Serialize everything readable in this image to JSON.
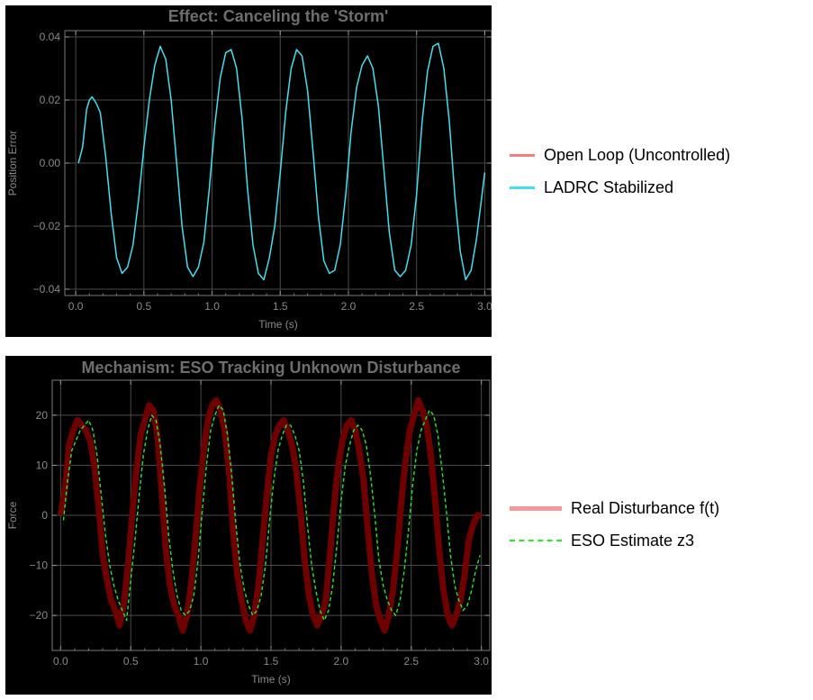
{
  "chart_data": [
    {
      "type": "line",
      "title": "Effect: Canceling the 'Storm'",
      "xlabel": "Time (s)",
      "ylabel": "Position Error",
      "xlim": [
        -0.08,
        3.05
      ],
      "ylim": [
        -0.042,
        0.042
      ],
      "xticks": [
        0.0,
        0.5,
        1.0,
        1.5,
        2.0,
        2.5,
        3.0
      ],
      "xtick_labels": [
        "0.0",
        "0.5",
        "1.0",
        "1.5",
        "2.0",
        "2.5",
        "3.0"
      ],
      "yticks": [
        -0.04,
        -0.02,
        0.0,
        0.02,
        0.04
      ],
      "ytick_labels": [
        "−0.04",
        "−0.02",
        "0.00",
        "0.02",
        "0.04"
      ],
      "grid": true,
      "legend_position": "right",
      "series": [
        {
          "name": "Open Loop (Uncontrolled)",
          "color": "#f08080",
          "x": [],
          "y": []
        },
        {
          "name": "LADRC Stabilized",
          "color": "#40e0f0",
          "x": [
            0.02,
            0.05,
            0.08,
            0.1,
            0.12,
            0.15,
            0.18,
            0.22,
            0.26,
            0.3,
            0.34,
            0.38,
            0.42,
            0.46,
            0.5,
            0.54,
            0.58,
            0.62,
            0.66,
            0.7,
            0.74,
            0.78,
            0.82,
            0.86,
            0.9,
            0.94,
            0.98,
            1.02,
            1.06,
            1.1,
            1.14,
            1.18,
            1.22,
            1.26,
            1.3,
            1.34,
            1.38,
            1.42,
            1.46,
            1.5,
            1.54,
            1.58,
            1.62,
            1.66,
            1.7,
            1.74,
            1.78,
            1.82,
            1.86,
            1.9,
            1.94,
            1.98,
            2.02,
            2.06,
            2.1,
            2.14,
            2.18,
            2.22,
            2.26,
            2.3,
            2.34,
            2.38,
            2.42,
            2.46,
            2.5,
            2.54,
            2.58,
            2.62,
            2.66,
            2.7,
            2.74,
            2.78,
            2.82,
            2.86,
            2.9,
            2.94,
            2.98,
            3.0
          ],
          "y": [
            0.0,
            0.005,
            0.017,
            0.02,
            0.021,
            0.019,
            0.016,
            0.002,
            -0.016,
            -0.03,
            -0.035,
            -0.033,
            -0.026,
            -0.012,
            0.005,
            0.02,
            0.031,
            0.037,
            0.033,
            0.02,
            0.0,
            -0.02,
            -0.033,
            -0.036,
            -0.033,
            -0.025,
            -0.008,
            0.012,
            0.027,
            0.035,
            0.036,
            0.03,
            0.014,
            -0.008,
            -0.026,
            -0.035,
            -0.037,
            -0.03,
            -0.02,
            -0.003,
            0.016,
            0.03,
            0.036,
            0.034,
            0.023,
            0.004,
            -0.017,
            -0.031,
            -0.035,
            -0.034,
            -0.026,
            -0.01,
            0.01,
            0.024,
            0.031,
            0.034,
            0.03,
            0.018,
            -0.002,
            -0.022,
            -0.034,
            -0.036,
            -0.034,
            -0.026,
            -0.01,
            0.013,
            0.029,
            0.037,
            0.038,
            0.03,
            0.013,
            -0.01,
            -0.028,
            -0.037,
            -0.034,
            -0.024,
            -0.01,
            -0.003
          ]
        }
      ]
    },
    {
      "type": "line",
      "title": "Mechanism: ESO Tracking Unknown Disturbance",
      "xlabel": "Time (s)",
      "ylabel": "Force",
      "xlim": [
        -0.06,
        3.06
      ],
      "ylim": [
        -27,
        27
      ],
      "xticks": [
        0.0,
        0.5,
        1.0,
        1.5,
        2.0,
        2.5,
        3.0
      ],
      "xtick_labels": [
        "0.0",
        "0.5",
        "1.0",
        "1.5",
        "2.0",
        "2.5",
        "3.0"
      ],
      "yticks": [
        -20,
        -10,
        0,
        10,
        20
      ],
      "ytick_labels": [
        "−20",
        "−10",
        "0",
        "10",
        "20"
      ],
      "grid": true,
      "legend_position": "right",
      "series": [
        {
          "name": "Real Disturbance f(t)",
          "color": "#f89898",
          "plot_color": "#6e0000",
          "x": [
            0.0,
            0.03,
            0.06,
            0.09,
            0.12,
            0.15,
            0.18,
            0.21,
            0.24,
            0.27,
            0.3,
            0.33,
            0.36,
            0.39,
            0.42,
            0.45,
            0.48,
            0.51,
            0.54,
            0.57,
            0.6,
            0.63,
            0.66,
            0.69,
            0.72,
            0.75,
            0.78,
            0.81,
            0.84,
            0.87,
            0.9,
            0.93,
            0.96,
            0.99,
            1.02,
            1.05,
            1.08,
            1.11,
            1.14,
            1.17,
            1.2,
            1.23,
            1.26,
            1.29,
            1.32,
            1.35,
            1.38,
            1.41,
            1.44,
            1.47,
            1.5,
            1.53,
            1.56,
            1.59,
            1.62,
            1.65,
            1.68,
            1.71,
            1.74,
            1.77,
            1.8,
            1.83,
            1.86,
            1.89,
            1.92,
            1.95,
            1.98,
            2.01,
            2.04,
            2.07,
            2.1,
            2.13,
            2.16,
            2.19,
            2.22,
            2.25,
            2.28,
            2.31,
            2.34,
            2.37,
            2.4,
            2.43,
            2.46,
            2.49,
            2.52,
            2.55,
            2.58,
            2.61,
            2.64,
            2.67,
            2.7,
            2.73,
            2.76,
            2.79,
            2.82,
            2.85,
            2.88,
            2.91,
            2.94,
            2.97,
            3.0
          ],
          "y": [
            0,
            5,
            14,
            17,
            19,
            18,
            17,
            15,
            10,
            2,
            -8,
            -13,
            -17,
            -19,
            -22,
            -18,
            -10,
            0,
            9,
            16,
            19,
            22,
            21,
            16,
            5,
            -7,
            -14,
            -18,
            -20,
            -23,
            -20,
            -14,
            -5,
            5,
            13,
            19,
            22,
            23,
            21,
            17,
            9,
            -3,
            -12,
            -17,
            -21,
            -23,
            -20,
            -14,
            -5,
            4,
            12,
            16,
            18,
            19,
            17,
            14,
            9,
            1,
            -9,
            -16,
            -20,
            -22,
            -20,
            -17,
            -8,
            2,
            10,
            15,
            18,
            19,
            17,
            13,
            7,
            -3,
            -12,
            -18,
            -21,
            -23,
            -20,
            -15,
            -7,
            3,
            11,
            17,
            20,
            23,
            21,
            18,
            12,
            3,
            -7,
            -15,
            -20,
            -22,
            -20,
            -17,
            -12,
            -5,
            -2,
            0,
            0
          ]
        },
        {
          "name": "ESO Estimate z3",
          "color": "#22ee22",
          "x": [
            0.02,
            0.05,
            0.08,
            0.11,
            0.14,
            0.17,
            0.2,
            0.23,
            0.26,
            0.29,
            0.32,
            0.35,
            0.38,
            0.41,
            0.44,
            0.47,
            0.5,
            0.53,
            0.56,
            0.59,
            0.62,
            0.65,
            0.68,
            0.71,
            0.74,
            0.77,
            0.8,
            0.83,
            0.86,
            0.89,
            0.92,
            0.95,
            0.98,
            1.01,
            1.04,
            1.07,
            1.1,
            1.13,
            1.16,
            1.19,
            1.22,
            1.25,
            1.28,
            1.31,
            1.34,
            1.37,
            1.4,
            1.43,
            1.46,
            1.49,
            1.52,
            1.55,
            1.58,
            1.61,
            1.64,
            1.67,
            1.7,
            1.73,
            1.76,
            1.79,
            1.82,
            1.85,
            1.88,
            1.91,
            1.94,
            1.97,
            2.0,
            2.03,
            2.06,
            2.09,
            2.12,
            2.15,
            2.18,
            2.21,
            2.24,
            2.27,
            2.3,
            2.33,
            2.36,
            2.39,
            2.42,
            2.45,
            2.48,
            2.51,
            2.54,
            2.57,
            2.6,
            2.63,
            2.66,
            2.69,
            2.72,
            2.75,
            2.78,
            2.81,
            2.84,
            2.87,
            2.9,
            2.93,
            2.96,
            2.99
          ],
          "y": [
            -1,
            7,
            13,
            15,
            17,
            18,
            19,
            17,
            12,
            4,
            -4,
            -10,
            -14,
            -17,
            -19,
            -21,
            -13,
            -5,
            4,
            12,
            17,
            20,
            19,
            14,
            6,
            -4,
            -11,
            -16,
            -19,
            -20,
            -19,
            -16,
            -9,
            1,
            10,
            17,
            20,
            22,
            21,
            16,
            8,
            -2,
            -10,
            -15,
            -18,
            -20,
            -19,
            -16,
            -10,
            -1,
            7,
            13,
            16,
            18,
            18,
            16,
            13,
            7,
            -2,
            -10,
            -15,
            -19,
            -21,
            -19,
            -14,
            -6,
            3,
            10,
            14,
            17,
            18,
            17,
            14,
            8,
            0,
            -9,
            -14,
            -17,
            -19,
            -20,
            -17,
            -11,
            -3,
            6,
            13,
            17,
            19,
            21,
            20,
            16,
            9,
            1,
            -8,
            -14,
            -17,
            -19,
            -18,
            -15,
            -11,
            -8
          ]
        }
      ]
    }
  ]
}
